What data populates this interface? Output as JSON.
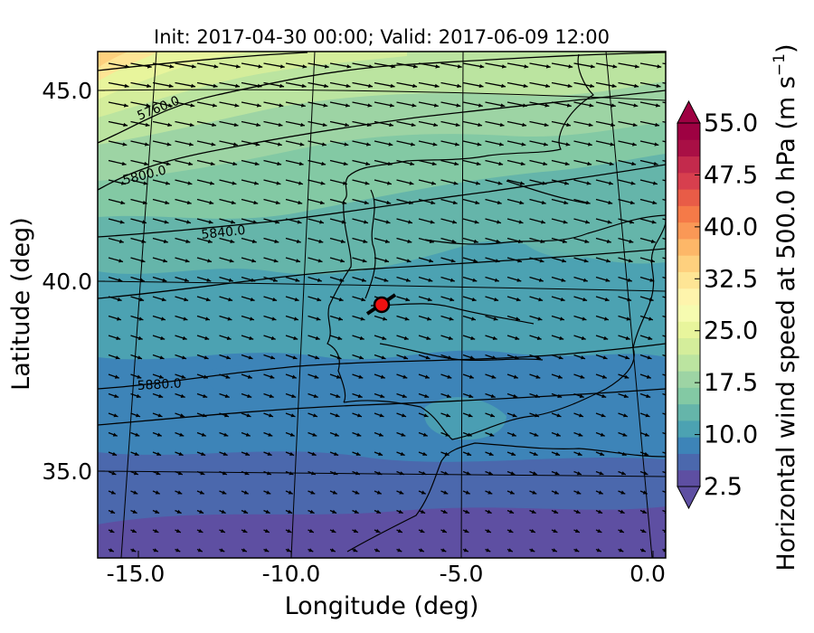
{
  "title": "Init: 2017-04-30 00:00; Valid: 2017-06-09 12:00",
  "map": {
    "x_axis": {
      "label": "Longitude (deg)",
      "range": [
        -16.0,
        0.2
      ],
      "ticks": [
        {
          "value": -15.0,
          "label": "-15.0"
        },
        {
          "value": -10.0,
          "label": "-10.0"
        },
        {
          "value": -5.0,
          "label": "-5.0"
        },
        {
          "value": 0.0,
          "label": "0.0"
        }
      ]
    },
    "y_axis": {
      "label": "Latitude (deg)",
      "range": [
        32.5,
        46.2
      ],
      "ticks": [
        {
          "value": 35.0,
          "label": "35.0"
        },
        {
          "value": 40.0,
          "label": "40.0"
        },
        {
          "value": 45.0,
          "label": "45.0"
        }
      ]
    },
    "field": "Horizontal wind speed at 500.0 hPa",
    "vectors": "wind arrows, mostly westerly to west-north-westerly flow",
    "marker": {
      "lon": -7.6,
      "lat": 39.35,
      "color": "#ee1111"
    },
    "contour_labels": [
      {
        "label": "5760.0",
        "lon": -13.8,
        "lat": 44.1
      },
      {
        "label": "5800.0",
        "lon": -14.4,
        "lat": 42.7
      },
      {
        "label": "5840.0",
        "lon": -11.8,
        "lat": 41.2
      },
      {
        "label": "5880.0",
        "lon": -14.1,
        "lat": 37.2
      }
    ]
  },
  "colorbar": {
    "label": "Horizontal wind speed at 500.0 hPa (m s",
    "unit_exponent": "−1",
    "label_close": ")",
    "min": 2.5,
    "max": 55.0,
    "step": 2.5,
    "ticks": [
      {
        "value": 55.0,
        "label": "55.0"
      },
      {
        "value": 47.5,
        "label": "47.5"
      },
      {
        "value": 40.0,
        "label": "40.0"
      },
      {
        "value": 32.5,
        "label": "32.5"
      },
      {
        "value": 25.0,
        "label": "25.0"
      },
      {
        "value": 17.5,
        "label": "17.5"
      },
      {
        "value": 10.0,
        "label": "10.0"
      },
      {
        "value": 2.5,
        "label": "2.5"
      }
    ],
    "colors": [
      "#5e4fa2",
      "#4b68ad",
      "#3d84b8",
      "#4ca2b2",
      "#65b5aa",
      "#83c9a4",
      "#9dd4a4",
      "#bbe4a0",
      "#d4ed9b",
      "#e8f59c",
      "#f6fbb0",
      "#fef4ac",
      "#fee595",
      "#fed07e",
      "#fdb768",
      "#fa9856",
      "#f57a48",
      "#e85c47",
      "#d73f4e",
      "#c32a4c",
      "#a90f45",
      "#9e0142"
    ]
  }
}
